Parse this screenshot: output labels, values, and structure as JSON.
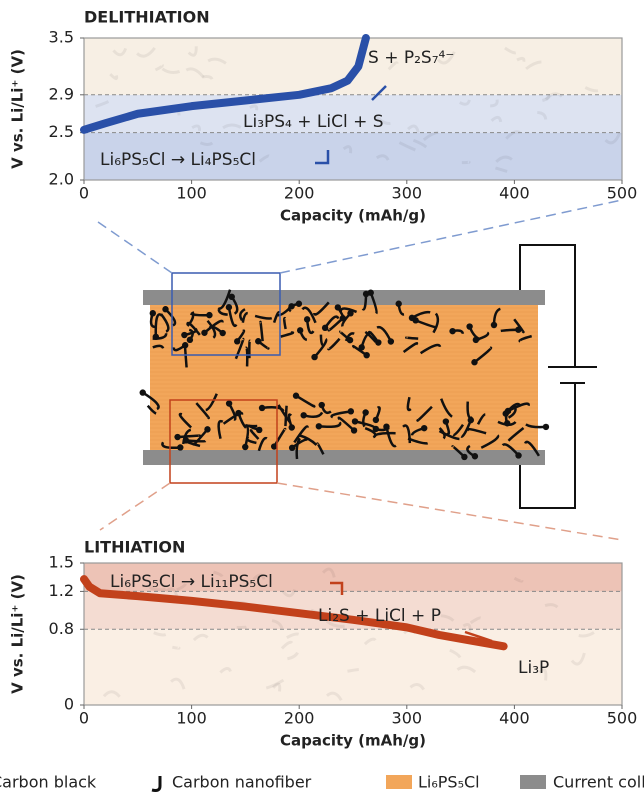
{
  "chart_data": [
    {
      "type": "line",
      "title": "DELITHIATION",
      "x_label": "Capacity (mAh/g)",
      "y_label": "V vs. Li/Li⁺ (V)",
      "x": [
        0,
        20,
        50,
        100,
        150,
        200,
        230,
        245,
        255,
        262
      ],
      "series": [
        {
          "color": "#2a50a8",
          "values": [
            2.53,
            2.6,
            2.7,
            2.78,
            2.84,
            2.9,
            2.97,
            3.05,
            3.2,
            3.5
          ]
        }
      ],
      "xlim": [
        0,
        500
      ],
      "xticks": [
        0,
        100,
        200,
        300,
        400,
        500
      ],
      "ylim": [
        2.0,
        3.5
      ],
      "yticks": [
        {
          "value": 2.0,
          "label": "2.0"
        },
        2.5,
        2.9,
        3.5
      ],
      "band_colors": [
        "#c9d3ea",
        "#dde3f1",
        "#f7efe4"
      ],
      "text_color": "#2a50a8",
      "annotations": [
        "Li₆PS₅Cl → Li₄PS₅Cl",
        "Li₃PS₄ + LiCl + S",
        "S + P₂S₇⁴⁻"
      ]
    },
    {
      "type": "line",
      "title": "LITHIATION",
      "x_label": "Capacity (mAh/g)",
      "y_label": "V vs. Li/Li⁺ (V)",
      "x": [
        0,
        5,
        15,
        50,
        100,
        150,
        200,
        250,
        300,
        330,
        360,
        390
      ],
      "series": [
        {
          "color": "#c2411b",
          "values": [
            1.33,
            1.25,
            1.18,
            1.15,
            1.1,
            1.04,
            0.97,
            0.9,
            0.82,
            0.74,
            0.68,
            0.62
          ]
        }
      ],
      "xlim": [
        0,
        500
      ],
      "xticks": [
        0,
        100,
        200,
        300,
        400,
        500
      ],
      "ylim": [
        0,
        1.5
      ],
      "yticks": [
        0,
        0.8,
        1.2,
        1.5
      ],
      "band_colors": [
        "#faefe4",
        "#f4dcd2",
        "#edc3b6"
      ],
      "text_color": "#c2411b",
      "annotations": [
        "Li₆PS₅Cl → Li₁₁PS₅Cl",
        "Li₂S + LiCl + P",
        "Li₃P"
      ]
    }
  ],
  "legend": [
    "Carbon black",
    "Carbon nanofiber",
    "Li₆PS₅Cl",
    "Current collector"
  ]
}
